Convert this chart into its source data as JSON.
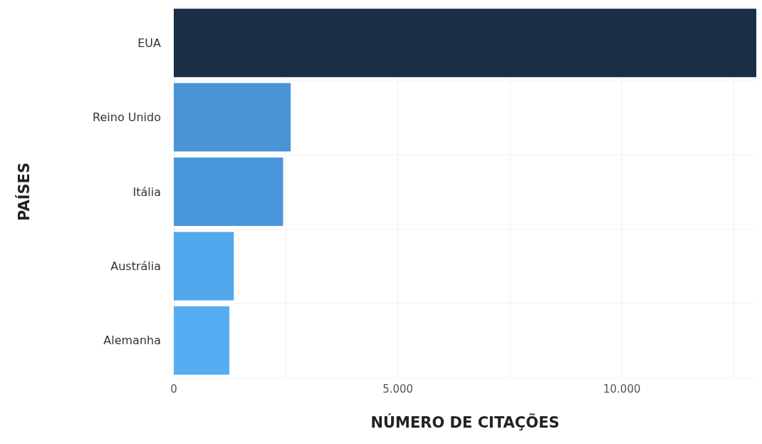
{
  "chart_data": {
    "type": "bar",
    "orientation": "horizontal",
    "xlabel": "NÚMERO DE CITAÇÕES",
    "ylabel": "PAÍSES",
    "categories": [
      "EUA",
      "Reino Unido",
      "Itália",
      "Austrália",
      "Alemanha"
    ],
    "values": [
      13000,
      2610,
      2440,
      1340,
      1240
    ],
    "colors": [
      "#1a2e48",
      "#4a94d6",
      "#4a98dc",
      "#52a8ec",
      "#56aef2"
    ],
    "xlim": [
      0,
      13000
    ],
    "xticks": [
      0,
      {
        "value": 5000,
        "label": "5.000"
      },
      {
        "value": 10000,
        "label": "10.000"
      }
    ],
    "grid": true
  }
}
